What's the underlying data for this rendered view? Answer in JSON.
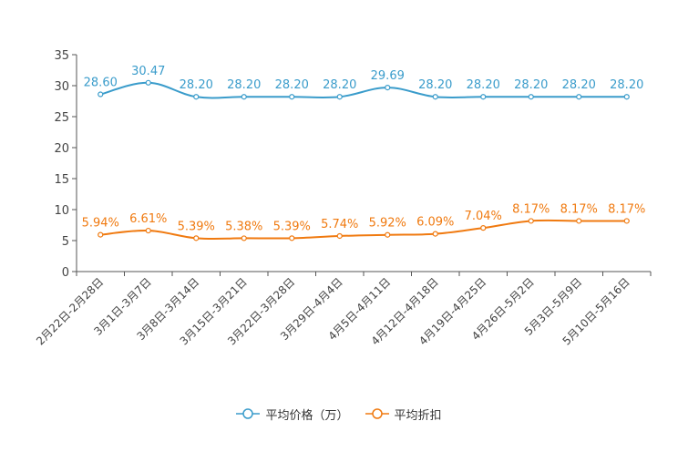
{
  "chart_data": {
    "type": "line",
    "categories": [
      "2月22日-2月28日",
      "3月1日-3月7日",
      "3月8日-3月14日",
      "3月15日-3月21日",
      "3月22日-3月28日",
      "3月29日-4月4日",
      "4月5日-4月11日",
      "4月12日-4月18日",
      "4月19日-4月25日",
      "4月26日-5月2日",
      "5月3日-5月9日",
      "5月10日-5月16日"
    ],
    "ylim": [
      0,
      35
    ],
    "yticks": [
      0,
      5,
      10,
      15,
      20,
      25,
      30,
      35
    ],
    "series": [
      {
        "name": "平均价格（万）",
        "color": "#3a9ccb",
        "values": [
          28.6,
          30.47,
          28.2,
          28.2,
          28.2,
          28.2,
          29.69,
          28.2,
          28.2,
          28.2,
          28.2,
          28.2
        ],
        "labels": [
          "28.60",
          "30.47",
          "28.20",
          "28.20",
          "28.20",
          "28.20",
          "29.69",
          "28.20",
          "28.20",
          "28.20",
          "28.20",
          "28.20"
        ]
      },
      {
        "name": "平均折扣",
        "color": "#f07a10",
        "values": [
          5.94,
          6.61,
          5.39,
          5.38,
          5.39,
          5.74,
          5.92,
          6.09,
          7.04,
          8.17,
          8.17,
          8.17
        ],
        "labels": [
          "5.94%",
          "6.61%",
          "5.39%",
          "5.38%",
          "5.39%",
          "5.74%",
          "5.92%",
          "6.09%",
          "7.04%",
          "8.17%",
          "8.17%",
          "8.17%"
        ]
      }
    ],
    "legend_position": "bottom-center"
  }
}
